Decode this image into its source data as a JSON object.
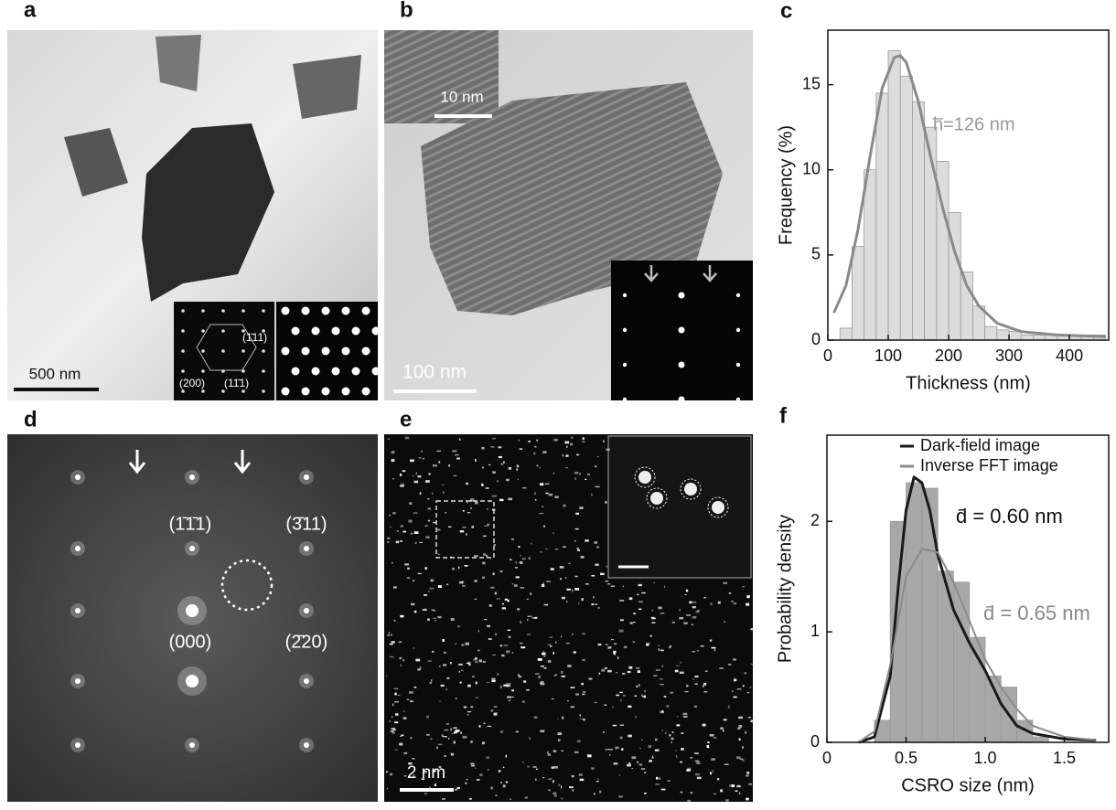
{
  "panels": [
    {
      "letter": "a",
      "texts": [
        "500 nm",
        "(1̄11)",
        "(200)",
        "(11̄1)"
      ]
    },
    {
      "letter": "b",
      "texts": [
        "10 nm",
        "100 nm"
      ]
    },
    {
      "letter": "d",
      "texts": [
        "(1̄1̄1)",
        "(3̄11)",
        "(000)",
        "(2̄20)"
      ]
    },
    {
      "letter": "e",
      "texts": [
        "2 nm"
      ]
    }
  ],
  "chart_data": [
    {
      "type": "histogram",
      "panel": "c",
      "xlabel": "Thickness (nm)",
      "ylabel": "Frequency (%)",
      "annotation": "h̅=126 nm",
      "bins": [
        20,
        40,
        60,
        80,
        100,
        120,
        140,
        160,
        180,
        200,
        220,
        240,
        260,
        280,
        300,
        320,
        340,
        360,
        380,
        400,
        420,
        440,
        460
      ],
      "counts": [
        0.7,
        5.5,
        10,
        14.5,
        17,
        15.5,
        14,
        12.5,
        10.5,
        7.5,
        4,
        2,
        0.8,
        0.6,
        0.5,
        0.3,
        0.3,
        0.3,
        0.3,
        0.3,
        0.3,
        0.3
      ],
      "color": "#dcdcdc",
      "series": [
        {
          "color": "#8a8a8a",
          "x": [
            10,
            30,
            50,
            70,
            90,
            110,
            120,
            130,
            150,
            170,
            190,
            210,
            230,
            250,
            280,
            320,
            380,
            460
          ],
          "values": [
            1.6,
            3.2,
            6.5,
            10.8,
            14.8,
            16.6,
            16.7,
            16.3,
            14.0,
            10.8,
            7.8,
            5.2,
            3.2,
            2.0,
            1.0,
            0.5,
            0.3,
            0.2
          ]
        }
      ],
      "xlim": [
        0,
        465
      ],
      "xticks": [
        0,
        100,
        200,
        300,
        400
      ],
      "ylim": [
        0,
        18.2
      ],
      "yticks": [
        0,
        5,
        10,
        15
      ]
    },
    {
      "type": "histogram",
      "panel": "f",
      "xlabel": "CSRO size (nm)",
      "ylabel": "Probability density",
      "annotations": [
        "d̄ = 0.60 nm",
        "d̄ = 0.65 nm"
      ],
      "bins": [
        0.3,
        0.4,
        0.5,
        0.6,
        0.7,
        0.8,
        0.9,
        1.0,
        1.1,
        1.2,
        1.3,
        1.4
      ],
      "counts": [
        0.2,
        2.0,
        2.35,
        2.3,
        1.55,
        1.45,
        0.95,
        0.6,
        0.5,
        0.2,
        0.05
      ],
      "color": "#a8a8a8",
      "series": [
        {
          "name": "Dark-field image",
          "color": "#1a1a1a",
          "x": [
            0.2,
            0.3,
            0.4,
            0.45,
            0.5,
            0.55,
            0.6,
            0.65,
            0.7,
            0.8,
            0.9,
            1.0,
            1.1,
            1.2,
            1.3,
            1.5,
            1.7
          ],
          "values": [
            0,
            0.05,
            0.6,
            1.4,
            2.1,
            2.4,
            2.35,
            2.1,
            1.7,
            1.2,
            0.9,
            0.65,
            0.35,
            0.15,
            0.08,
            0.03,
            0.02
          ]
        },
        {
          "name": "Inverse FFT image",
          "color": "#8a8a8a",
          "x": [
            0.2,
            0.3,
            0.4,
            0.5,
            0.6,
            0.7,
            0.8,
            0.9,
            1.0,
            1.1,
            1.2,
            1.3,
            1.5,
            1.7
          ],
          "values": [
            0,
            0.1,
            0.7,
            1.5,
            1.75,
            1.72,
            1.45,
            1.1,
            0.75,
            0.5,
            0.3,
            0.15,
            0.05,
            0.02
          ]
        }
      ],
      "xlim": [
        0,
        1.78
      ],
      "xticks": [
        0,
        0.5,
        {
          "value": 1,
          "label": "1.0"
        },
        1.5
      ],
      "ylim": [
        0,
        2.78
      ],
      "yticks": [
        0,
        1,
        2
      ]
    }
  ]
}
